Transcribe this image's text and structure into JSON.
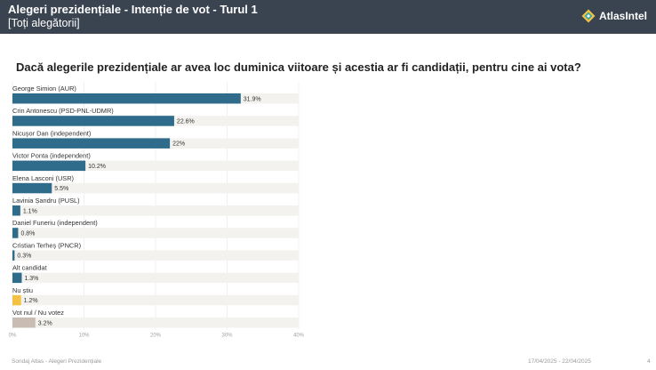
{
  "header": {
    "title": "Alegeri prezidențiale - Intenție de vot - Turul 1",
    "subtitle": "[Toți alegătorii]",
    "brand": "AtlasIntel",
    "logo_icon": "atlas-logo-icon"
  },
  "question": "Dacă alegerile prezidențiale ar avea loc duminica viitoare și acestia ar fi candidații, pentru cine ai vota?",
  "chart_data": {
    "type": "bar",
    "orientation": "horizontal",
    "categories": [
      "George Simion (AUR)",
      "Crin Antonescu (PSD-PNL-UDMR)",
      "Nicușor Dan (independent)",
      "Victor Ponta (independent)",
      "Elena Lasconi (USR)",
      "Lavinia Șandru (PUSL)",
      "Daniel Funeriu (independent)",
      "Cristian Terheș (PNCR)",
      "Alt candidat",
      "Nu știu",
      "Vot nul / Nu votez"
    ],
    "values": [
      31.9,
      22.6,
      22,
      10.2,
      5.5,
      1.1,
      0.8,
      0.3,
      1.3,
      1.2,
      3.2
    ],
    "value_labels": [
      "31.9%",
      "22.6%",
      "22%",
      "10.2%",
      "5.5%",
      "1.1%",
      "0.8%",
      "0.3%",
      "1.3%",
      "1.2%",
      "3.2%"
    ],
    "colors": [
      "#2f6b8a",
      "#2f6b8a",
      "#2f6b8a",
      "#2f6b8a",
      "#2f6b8a",
      "#2f6b8a",
      "#2f6b8a",
      "#2f6b8a",
      "#2f6b8a",
      "#f3c243",
      "#c9bcb3"
    ],
    "track_color": "#f3f2ee",
    "xlim": [
      0,
      40
    ],
    "ticks": [
      0,
      10,
      20,
      30,
      40
    ],
    "tick_labels": [
      "0%",
      "10%",
      "20%",
      "30%",
      "40%"
    ],
    "grid": true
  },
  "footer": {
    "source": "Sondaj Atlas - Alegeri Prezidențiale",
    "dates": "17/04/2025 - 22/04/2025",
    "page": "4"
  }
}
